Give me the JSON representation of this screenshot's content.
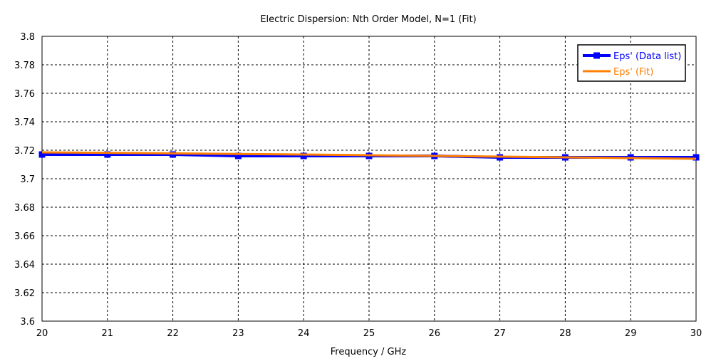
{
  "chart_data": {
    "type": "line",
    "title": "Electric Dispersion: Nth Order Model, N=1 (Fit)",
    "xlabel": "Frequency / GHz",
    "ylabel": "",
    "xlim": [
      20,
      30
    ],
    "ylim": [
      3.6,
      3.8
    ],
    "x_ticks": [
      "20",
      "21",
      "22",
      "23",
      "24",
      "25",
      "26",
      "27",
      "28",
      "29",
      "30"
    ],
    "y_ticks": [
      "3.6",
      "3.62",
      "3.64",
      "3.66",
      "3.68",
      "3.7",
      "3.72",
      "3.74",
      "3.76",
      "3.78",
      "3.8"
    ],
    "grid": true,
    "legend_position": "top-right",
    "series": [
      {
        "name": "Eps' (Data list)",
        "color": "#0000ff",
        "marker": "square",
        "x": [
          20,
          21,
          22,
          23,
          24,
          25,
          26,
          27,
          28,
          29,
          30
        ],
        "y": [
          3.717,
          3.717,
          3.717,
          3.716,
          3.716,
          3.716,
          3.716,
          3.715,
          3.715,
          3.715,
          3.715
        ]
      },
      {
        "name": "Eps' (Fit)",
        "color": "#ff7f00",
        "marker": "none",
        "x": [
          20,
          21,
          22,
          23,
          24,
          25,
          26,
          27,
          28,
          29,
          30
        ],
        "y": [
          3.7185,
          3.7182,
          3.7178,
          3.7174,
          3.717,
          3.7165,
          3.716,
          3.7155,
          3.715,
          3.7145,
          3.714
        ]
      }
    ]
  }
}
